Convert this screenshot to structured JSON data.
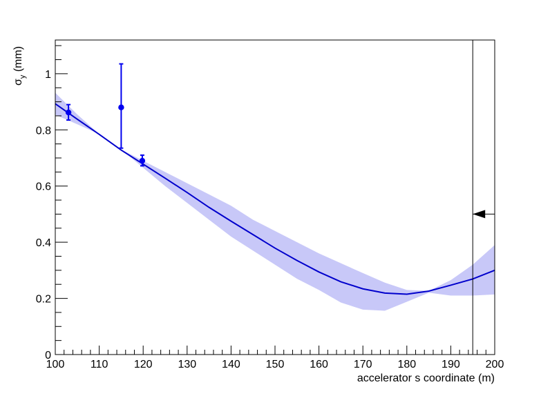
{
  "chart_data": {
    "type": "line",
    "title": "",
    "xlabel": "accelerator s coordinate (m)",
    "ylabel_main": "σ",
    "ylabel_sub": "y",
    "ylabel_unit": " (mm)",
    "xlim": [
      100,
      200
    ],
    "ylim": [
      0,
      1.12
    ],
    "x_ticks": [
      100,
      110,
      120,
      130,
      140,
      150,
      160,
      170,
      180,
      190,
      200
    ],
    "y_ticks": [
      0,
      0.2,
      0.4,
      0.6,
      0.8,
      1
    ],
    "grid": false,
    "colors": {
      "fit_line": "#0000cc",
      "band": "#c8c8f8",
      "points": "#0000ee",
      "marker": "#000000"
    },
    "fit_curve": {
      "x": [
        100,
        105,
        110,
        115,
        120,
        125,
        130,
        135,
        140,
        145,
        150,
        155,
        160,
        165,
        170,
        175,
        180,
        185,
        190,
        195,
        200
      ],
      "y": [
        0.893,
        0.838,
        0.784,
        0.728,
        0.678,
        0.628,
        0.577,
        0.524,
        0.475,
        0.427,
        0.379,
        0.335,
        0.294,
        0.259,
        0.234,
        0.219,
        0.215,
        0.226,
        0.247,
        0.269,
        0.3
      ]
    },
    "band": {
      "x": [
        100,
        105,
        110,
        115,
        120,
        125,
        130,
        135,
        140,
        145,
        150,
        155,
        160,
        165,
        170,
        175,
        180,
        185,
        190,
        195,
        200
      ],
      "upper": [
        0.932,
        0.855,
        0.785,
        0.73,
        0.69,
        0.65,
        0.61,
        0.57,
        0.53,
        0.48,
        0.44,
        0.4,
        0.36,
        0.325,
        0.29,
        0.256,
        0.23,
        0.227,
        0.265,
        0.32,
        0.39
      ],
      "lower": [
        0.854,
        0.82,
        0.785,
        0.73,
        0.665,
        0.6,
        0.54,
        0.48,
        0.42,
        0.37,
        0.32,
        0.27,
        0.23,
        0.185,
        0.16,
        0.156,
        0.188,
        0.22,
        0.21,
        0.21,
        0.214
      ]
    },
    "points": [
      {
        "x": 103,
        "y": 0.862,
        "yerr_low": 0.027,
        "yerr_high": 0.028
      },
      {
        "x": 115,
        "y": 0.88,
        "yerr_low": 0.145,
        "yerr_high": 0.155
      },
      {
        "x": 119.8,
        "y": 0.69,
        "yerr_low": 0.018,
        "yerr_high": 0.02
      }
    ],
    "vertical_line_x": 195,
    "arrow": {
      "x_from": 200,
      "x_to": 195,
      "y": 0.5,
      "direction": "left"
    }
  }
}
